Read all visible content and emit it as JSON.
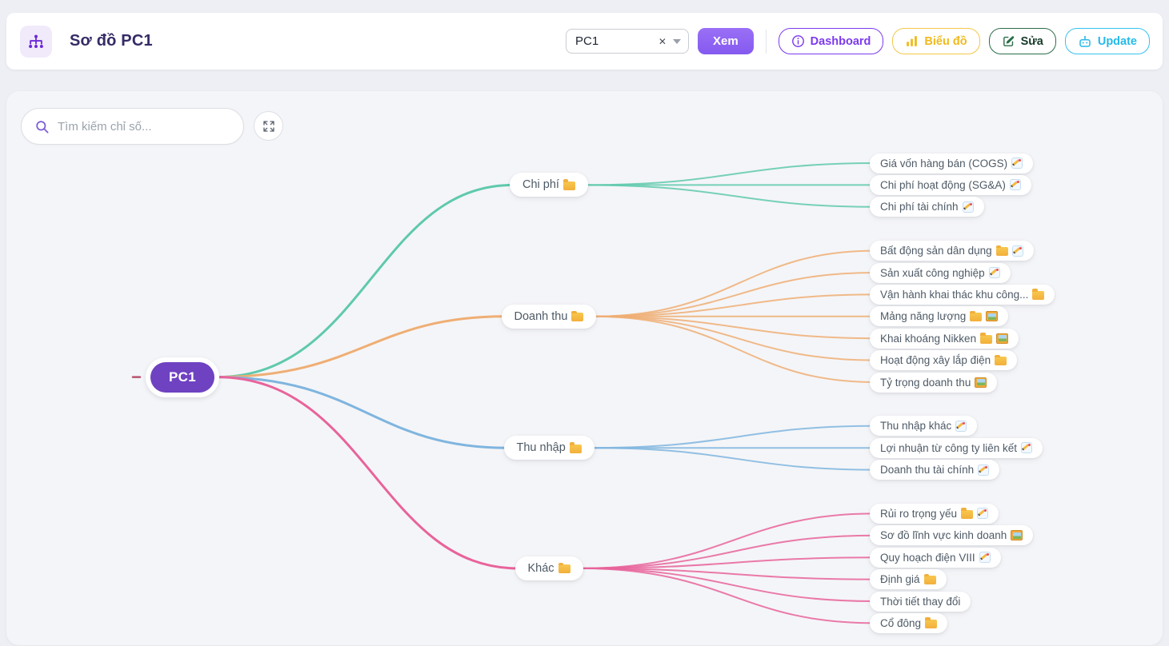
{
  "header": {
    "title": "Sơ đồ PC1",
    "select": {
      "value": "PC1"
    },
    "view_button": {
      "label": "Xem",
      "color": "#8b5cf6"
    },
    "buttons": {
      "dashboard": {
        "label": "Dashboard",
        "color": "#7c3aed",
        "text": "#7c3aed",
        "icon": "info-icon"
      },
      "chart": {
        "label": "Biểu đồ",
        "color": "#f3c74b",
        "text": "#f0ba1e",
        "icon": "bar-chart-icon"
      },
      "edit": {
        "label": "Sửa",
        "color": "#2c6e49",
        "text": "#173a2a",
        "icon": "pencil-square-icon"
      },
      "update": {
        "label": "Update",
        "color": "#35c3ef",
        "text": "#27b9ea",
        "icon": "robot-icon"
      }
    }
  },
  "canvas": {
    "search_placeholder": "Tìm kiếm chỉ số...",
    "root": {
      "label": "PC1",
      "color": "#6f42c1"
    },
    "branches": [
      {
        "label": "Chi phí",
        "icons": [
          "folder"
        ],
        "color": "#5fc9ad",
        "children": [
          {
            "label": "Giá vốn hàng bán (COGS)",
            "icons": [
              "memo"
            ]
          },
          {
            "label": "Chi phí hoạt động (SG&A)",
            "icons": [
              "memo"
            ]
          },
          {
            "label": "Chi phí tài chính",
            "icons": [
              "memo"
            ]
          }
        ]
      },
      {
        "label": "Doanh thu",
        "icons": [
          "folder"
        ],
        "color": "#efae74",
        "children": [
          {
            "label": "Bất động sản dân dụng",
            "icons": [
              "folder",
              "memo"
            ]
          },
          {
            "label": "Sản xuất công nghiệp",
            "icons": [
              "memo"
            ]
          },
          {
            "label": "Vận hành khai thác khu công...",
            "icons": [
              "folder"
            ]
          },
          {
            "label": "Mảng năng lượng",
            "icons": [
              "folder",
              "picture"
            ]
          },
          {
            "label": "Khai khoáng Nikken",
            "icons": [
              "folder",
              "picture"
            ]
          },
          {
            "label": "Hoạt động xây lắp điện",
            "icons": [
              "folder"
            ]
          },
          {
            "label": "Tỷ trọng doanh thu",
            "icons": [
              "picture"
            ]
          }
        ]
      },
      {
        "label": "Thu nhập",
        "icons": [
          "folder"
        ],
        "color": "#7fb5df",
        "children": [
          {
            "label": "Thu nhập khác",
            "icons": [
              "memo"
            ]
          },
          {
            "label": "Lợi nhuận từ công ty liên kết",
            "icons": [
              "memo"
            ]
          },
          {
            "label": "Doanh thu tài chính",
            "icons": [
              "memo"
            ]
          }
        ]
      },
      {
        "label": "Khác",
        "icons": [
          "folder"
        ],
        "color": "#e8639b",
        "children": [
          {
            "label": "Rủi ro trọng yếu",
            "icons": [
              "folder",
              "memo"
            ]
          },
          {
            "label": "Sơ đồ lĩnh vực kinh doanh",
            "icons": [
              "picture"
            ]
          },
          {
            "label": "Quy hoạch điện VIII",
            "icons": [
              "memo"
            ]
          },
          {
            "label": "Định giá",
            "icons": [
              "folder"
            ]
          },
          {
            "label": "Thời tiết thay đổi",
            "icons": []
          },
          {
            "label": "Cổ đông",
            "icons": [
              "folder"
            ]
          }
        ]
      }
    ]
  }
}
